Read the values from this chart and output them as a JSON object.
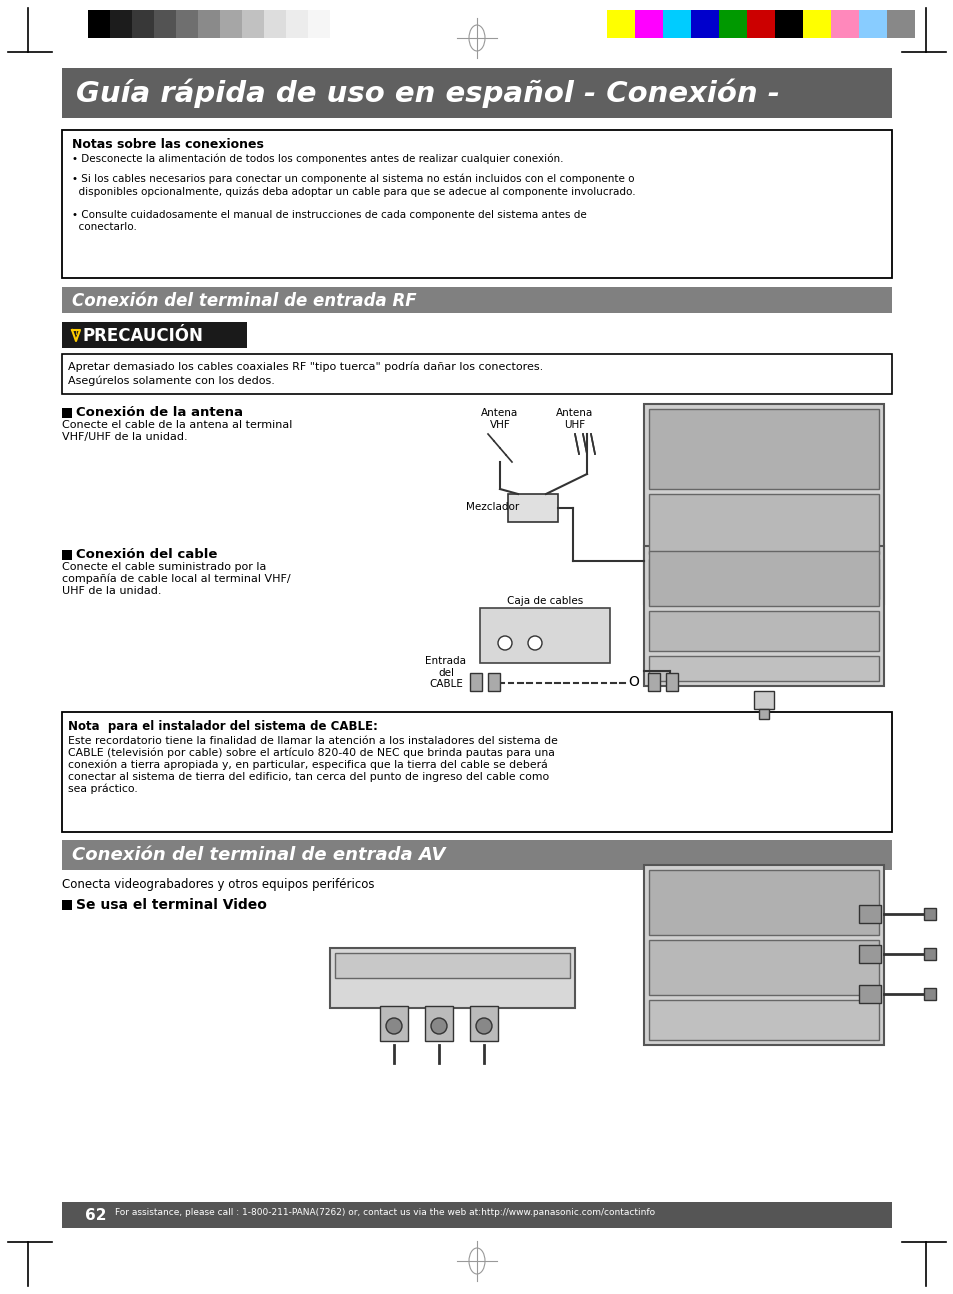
{
  "page_bg": "#ffffff",
  "title_bg": "#606060",
  "title_text": "Guía rápida de uso en español - Conexión -",
  "title_color": "#ffffff",
  "section_rf_bg": "#808080",
  "section_av_bg": "#808080",
  "section_rf_text": "Conexión del terminal de entrada RF",
  "section_av_text": "Conexión del terminal de entrada AV",
  "precaucion_bg": "#1a1a1a",
  "bottom_bar_color": "#555555",
  "bottom_text": "For assistance, please call : 1-800-211-PANA(7262) or, contact us via the web at:http://www.panasonic.com/contactinfo",
  "page_number": "62",
  "gray_colors": [
    "#000000",
    "#1c1c1c",
    "#383838",
    "#535353",
    "#6f6f6f",
    "#8a8a8a",
    "#a6a6a6",
    "#c1c1c1",
    "#dddddd",
    "#ececec",
    "#f6f6f6",
    "#ffffff"
  ],
  "color_bars": [
    "#ffff00",
    "#ff00ff",
    "#00ccff",
    "#0000cc",
    "#009900",
    "#cc0000",
    "#000000",
    "#ffff00",
    "#ff88bb",
    "#88ccff",
    "#888888"
  ],
  "notes_title": "Notas sobre las conexiones",
  "notes_bullets": [
    "• Desconecte la alimentación de todos los componentes antes de realizar cualquier conexión.",
    "• Si los cables necesarios para conectar un componente al sistema no están incluidos con el componente o\n  disponibles opcionalmente, quizás deba adoptar un cable para que se adecue al componente involucrado.",
    "• Consulte cuidadosamente el manual de instrucciones de cada componente del sistema antes de\n  conectarlo."
  ],
  "precaucion_note1": "Apretar demasiado los cables coaxiales RF \"tipo tuerca\" podría dañar los conectores.",
  "precaucion_note2": "Asegúrelos solamente con los dedos.",
  "ant_title": "Conexión de la antena",
  "ant_body": "Conecte el cable de la antena al terminal\nVHF/UHF de la unidad.",
  "cable_title": "Conexión del cable",
  "cable_body": "Conecte el cable suministrado por la\ncompañía de cable local al terminal VHF/\nUHF de la unidad.",
  "cable_note_title": "Nota  para el instalador del sistema de CABLE:",
  "cable_note_body": "Este recordatorio tiene la finalidad de llamar la atención a los instaladores del sistema de\nCABLE (televisión por cable) sobre el artículo 820-40 de NEC que brinda pautas para una\nconexión a tierra apropiada y, en particular, especifica que la tierra del cable se deberá\nconectar al sistema de tierra del edificio, tan cerca del punto de ingreso del cable como\nsea práctico.",
  "av_subtitle": "Conecta videograbadores y otros equipos periféricos",
  "av_video_title": "Se usa el terminal Video"
}
